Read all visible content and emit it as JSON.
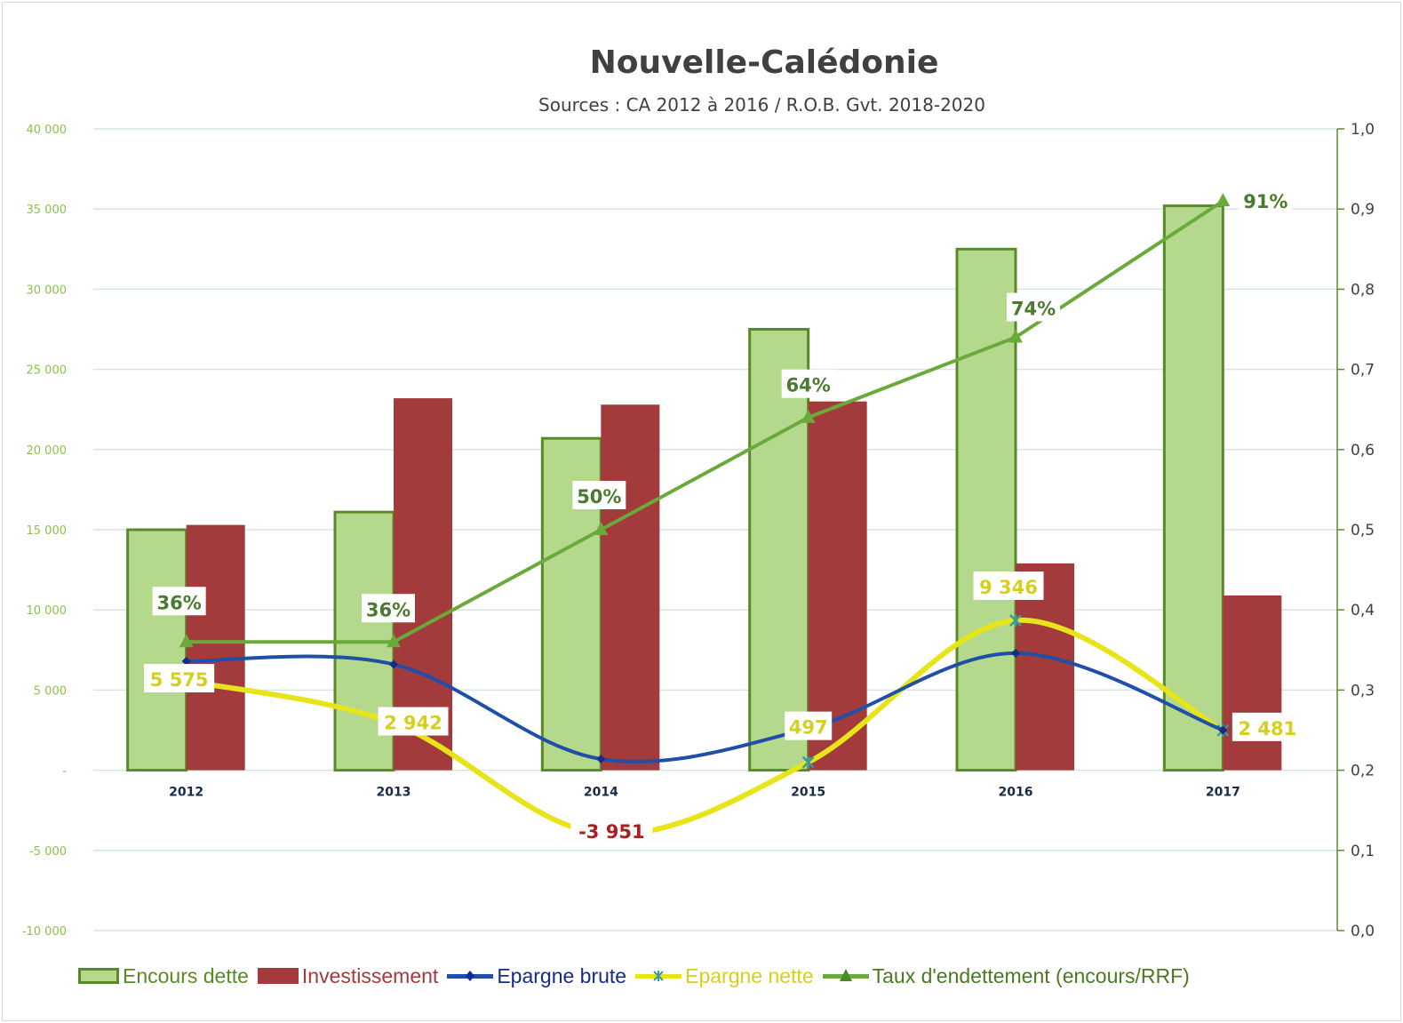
{
  "chart_data": {
    "type": "bar+line",
    "title": "Nouvelle-Calédonie",
    "subtitle": "Sources : CA 2012 à 2016 / R.O.B. Gvt. 2018-2020",
    "categories": [
      "2012",
      "2013",
      "2014",
      "2015",
      "2016",
      "2017"
    ],
    "left_axis": {
      "ylim": [
        -10000,
        40000
      ],
      "ticks": [
        "-10 000",
        "-5 000",
        "-",
        "5 000",
        "10 000",
        "15 000",
        "20 000",
        "25 000",
        "30 000",
        "35 000",
        "40 000"
      ],
      "tick_values": [
        -10000,
        -5000,
        0,
        5000,
        10000,
        15000,
        20000,
        25000,
        30000,
        35000,
        40000
      ]
    },
    "right_axis": {
      "ylim": [
        0,
        1
      ],
      "ticks": [
        "0,0",
        "0,1",
        "0,2",
        "0,3",
        "0,4",
        "0,5",
        "0,6",
        "0,7",
        "0,8",
        "0,9",
        "1,0"
      ],
      "tick_values": [
        0,
        0.1,
        0.2,
        0.3,
        0.4,
        0.5,
        0.6,
        0.7,
        0.8,
        0.9,
        1.0
      ]
    },
    "grid": true,
    "legend_placement": "bottom",
    "series": [
      {
        "name": "Encours dette",
        "kind": "bar",
        "axis": "left",
        "color": "#b5d98c",
        "border": "#5a8a28",
        "values": [
          15000,
          16100,
          20700,
          27500,
          32500,
          35200
        ]
      },
      {
        "name": "Investissement",
        "kind": "bar",
        "axis": "left",
        "color": "#a33a3c",
        "values": [
          15300,
          23200,
          22800,
          23000,
          12900,
          10900
        ]
      },
      {
        "name": "Epargne brute",
        "kind": "line",
        "axis": "left",
        "color": "#1f4fa8",
        "values": [
          6800,
          6600,
          700,
          2600,
          7300,
          2500
        ]
      },
      {
        "name": "Epargne nette",
        "kind": "line",
        "axis": "left",
        "color": "#e8e41a",
        "values": [
          5575,
          2942,
          -3951,
          497,
          9346,
          2481
        ],
        "labels": [
          "5 575",
          "2 942",
          "-3 951",
          "497",
          "9 346",
          "2 481"
        ]
      },
      {
        "name": "Taux d'endettement (encours/RRF)",
        "kind": "line",
        "axis": "right",
        "color": "#6aaa3a",
        "values": [
          0.36,
          0.36,
          0.5,
          0.64,
          0.74,
          0.91
        ],
        "labels": [
          "36%",
          "36%",
          "50%",
          "64%",
          "74%",
          "91%"
        ]
      }
    ]
  }
}
